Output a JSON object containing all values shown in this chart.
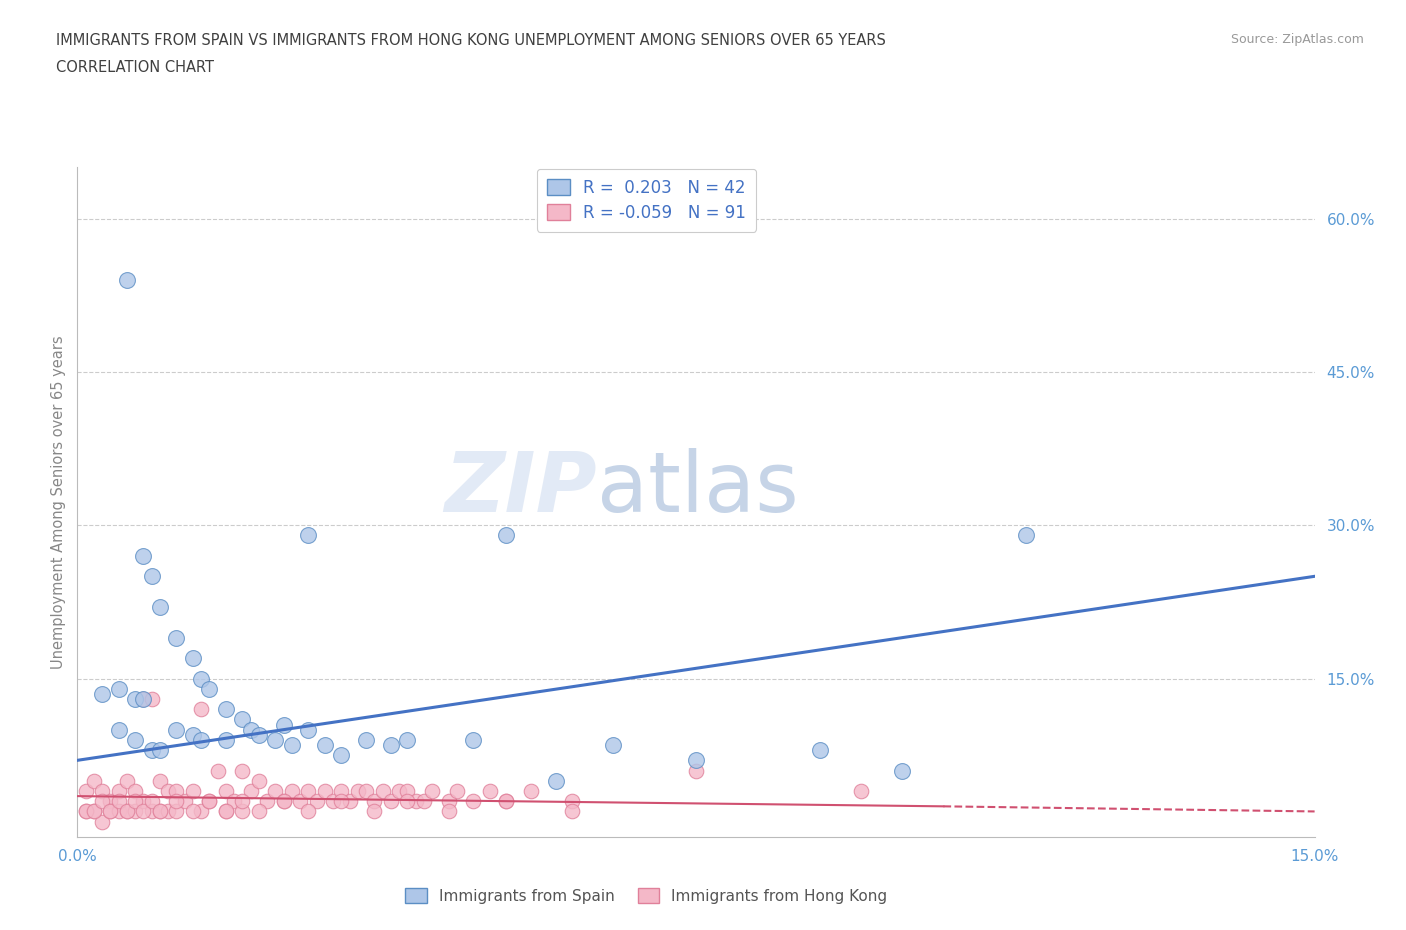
{
  "title_line1": "IMMIGRANTS FROM SPAIN VS IMMIGRANTS FROM HONG KONG UNEMPLOYMENT AMONG SENIORS OVER 65 YEARS",
  "title_line2": "CORRELATION CHART",
  "source": "Source: ZipAtlas.com",
  "ylabel": "Unemployment Among Seniors over 65 years",
  "xlim": [
    0.0,
    0.15
  ],
  "ylim": [
    -0.005,
    0.65
  ],
  "grid_color": "#cccccc",
  "background_color": "#ffffff",
  "watermark_zip": "ZIP",
  "watermark_atlas": "atlas",
  "spain_color": "#aec6e8",
  "hk_color": "#f4b8c8",
  "spain_edge_color": "#5b8ec4",
  "hk_edge_color": "#e0809a",
  "spain_line_color": "#4472c4",
  "hk_line_color": "#d05070",
  "title_color": "#404040",
  "axis_label_color": "#5b9bd5",
  "ylabel_color": "#888888",
  "legend_text_color": "#4472c4",
  "spain_scatter_x": [
    0.006,
    0.008,
    0.009,
    0.01,
    0.012,
    0.014,
    0.015,
    0.016,
    0.018,
    0.02,
    0.021,
    0.022,
    0.024,
    0.026,
    0.028,
    0.03,
    0.032,
    0.035,
    0.038,
    0.04,
    0.003,
    0.005,
    0.007,
    0.008,
    0.009,
    0.01,
    0.012,
    0.014,
    0.005,
    0.007,
    0.015,
    0.018,
    0.025,
    0.028,
    0.048,
    0.052,
    0.058,
    0.065,
    0.075,
    0.09,
    0.1,
    0.115
  ],
  "spain_scatter_y": [
    0.54,
    0.27,
    0.25,
    0.22,
    0.19,
    0.17,
    0.15,
    0.14,
    0.12,
    0.11,
    0.1,
    0.095,
    0.09,
    0.085,
    0.1,
    0.085,
    0.075,
    0.09,
    0.085,
    0.09,
    0.135,
    0.14,
    0.13,
    0.13,
    0.08,
    0.08,
    0.1,
    0.095,
    0.1,
    0.09,
    0.09,
    0.09,
    0.105,
    0.29,
    0.09,
    0.29,
    0.05,
    0.085,
    0.07,
    0.08,
    0.06,
    0.29
  ],
  "hk_scatter_x": [
    0.001,
    0.001,
    0.002,
    0.002,
    0.003,
    0.003,
    0.004,
    0.004,
    0.005,
    0.005,
    0.006,
    0.006,
    0.007,
    0.007,
    0.008,
    0.008,
    0.009,
    0.009,
    0.01,
    0.01,
    0.011,
    0.011,
    0.012,
    0.012,
    0.013,
    0.014,
    0.015,
    0.015,
    0.016,
    0.017,
    0.018,
    0.018,
    0.019,
    0.02,
    0.02,
    0.021,
    0.022,
    0.023,
    0.024,
    0.025,
    0.026,
    0.027,
    0.028,
    0.029,
    0.03,
    0.031,
    0.032,
    0.033,
    0.034,
    0.035,
    0.036,
    0.037,
    0.038,
    0.039,
    0.04,
    0.041,
    0.042,
    0.043,
    0.045,
    0.046,
    0.048,
    0.05,
    0.052,
    0.055,
    0.06,
    0.001,
    0.002,
    0.003,
    0.004,
    0.005,
    0.006,
    0.007,
    0.008,
    0.009,
    0.01,
    0.012,
    0.014,
    0.016,
    0.018,
    0.02,
    0.022,
    0.025,
    0.028,
    0.032,
    0.036,
    0.04,
    0.045,
    0.052,
    0.06,
    0.075,
    0.095
  ],
  "hk_scatter_y": [
    0.04,
    0.02,
    0.05,
    0.02,
    0.04,
    0.01,
    0.03,
    0.02,
    0.04,
    0.02,
    0.05,
    0.02,
    0.04,
    0.02,
    0.13,
    0.03,
    0.13,
    0.02,
    0.05,
    0.02,
    0.04,
    0.02,
    0.04,
    0.02,
    0.03,
    0.04,
    0.12,
    0.02,
    0.03,
    0.06,
    0.04,
    0.02,
    0.03,
    0.06,
    0.02,
    0.04,
    0.05,
    0.03,
    0.04,
    0.03,
    0.04,
    0.03,
    0.04,
    0.03,
    0.04,
    0.03,
    0.04,
    0.03,
    0.04,
    0.04,
    0.03,
    0.04,
    0.03,
    0.04,
    0.04,
    0.03,
    0.03,
    0.04,
    0.03,
    0.04,
    0.03,
    0.04,
    0.03,
    0.04,
    0.03,
    0.02,
    0.02,
    0.03,
    0.02,
    0.03,
    0.02,
    0.03,
    0.02,
    0.03,
    0.02,
    0.03,
    0.02,
    0.03,
    0.02,
    0.03,
    0.02,
    0.03,
    0.02,
    0.03,
    0.02,
    0.03,
    0.02,
    0.03,
    0.02,
    0.06,
    0.04
  ]
}
